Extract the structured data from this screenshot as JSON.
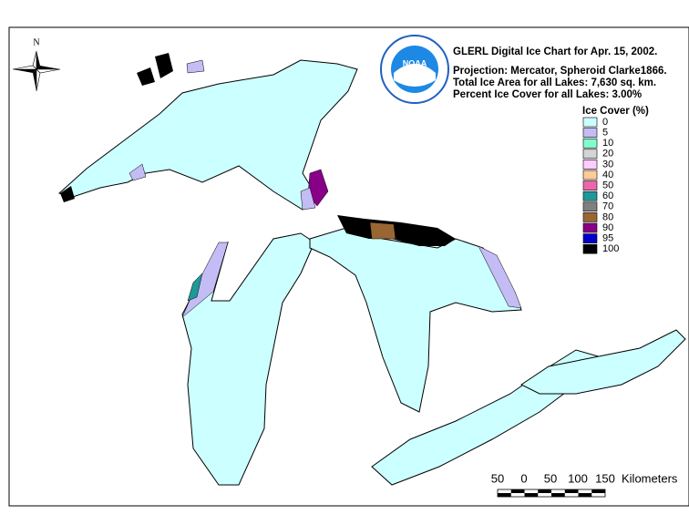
{
  "header": {
    "title": "GLERL Digital Ice Chart for Apr. 15, 2002.",
    "projection": "Projection:  Mercator, Spheroid Clarke1866.",
    "total_area": "Total Ice Area for all Lakes: 7,630 sq. km.",
    "percent_cover": "Percent Ice Cover for all Lakes:  3.00%"
  },
  "compass": "N",
  "logo": "NOAA",
  "legend": {
    "title": "Ice Cover (%)",
    "items": [
      {
        "label": "0",
        "color": "#ccffff"
      },
      {
        "label": "5",
        "color": "#c4bcf4"
      },
      {
        "label": "10",
        "color": "#80ffcc"
      },
      {
        "label": "20",
        "color": "#d4d4d4"
      },
      {
        "label": "30",
        "color": "#ffccff"
      },
      {
        "label": "40",
        "color": "#ffcc99"
      },
      {
        "label": "50",
        "color": "#ee66aa"
      },
      {
        "label": "60",
        "color": "#209898"
      },
      {
        "label": "70",
        "color": "#808080"
      },
      {
        "label": "80",
        "color": "#996633"
      },
      {
        "label": "90",
        "color": "#880088"
      },
      {
        "label": "95",
        "color": "#0000cc"
      },
      {
        "label": "100",
        "color": "#000000"
      }
    ]
  },
  "scale": {
    "labels": [
      "50",
      "0",
      "50",
      "100",
      "150"
    ],
    "unit": "Kilometers"
  }
}
